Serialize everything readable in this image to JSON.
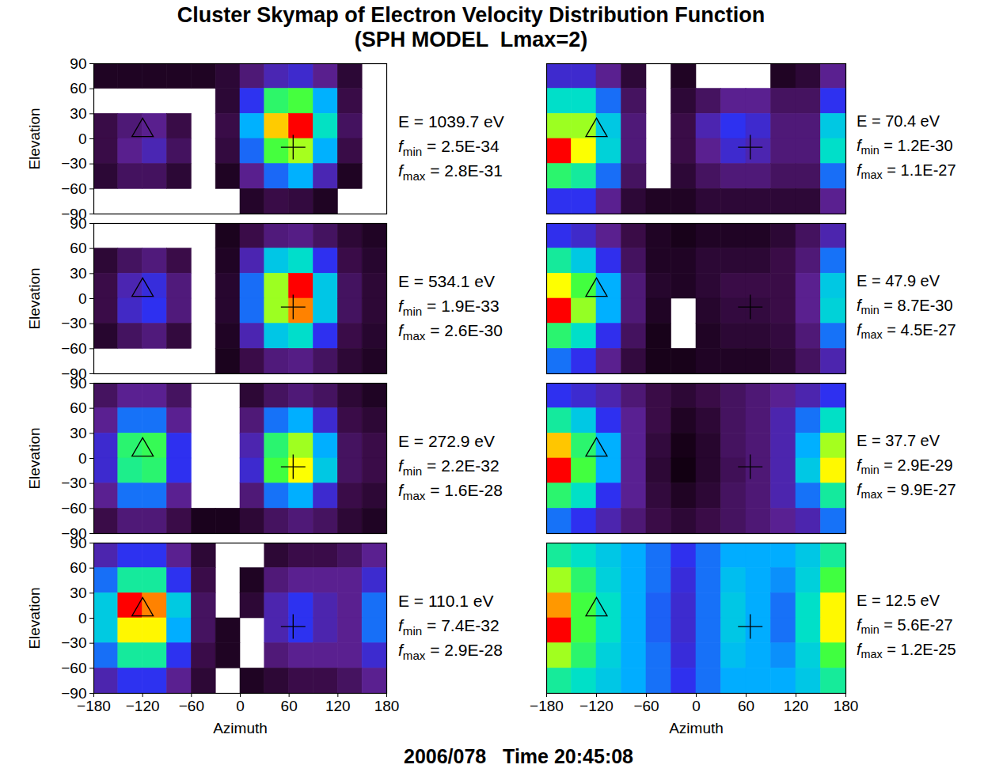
{
  "title": "Cluster Skymap of Electron Velocity Distribution Function",
  "subtitle": "(SPH MODEL  Lmax=2)",
  "caption": "2006/078   Time 20:45:08",
  "x_label": "Azimuth",
  "y_label": "Elevation",
  "xlim": [
    -180,
    180
  ],
  "xticks": [
    -180,
    -120,
    -60,
    0,
    60,
    120,
    180
  ],
  "ylim": [
    -90,
    90
  ],
  "yticks": [
    -90,
    -60,
    -30,
    0,
    30,
    60,
    90
  ],
  "f_symbol": "f",
  "min_subscript": "min",
  "max_subscript": "max",
  "azimuth_edges": [
    -180,
    -150,
    -120,
    -90,
    -60,
    -30,
    0,
    30,
    60,
    90,
    120,
    150,
    180
  ],
  "elevation_edges": [
    90,
    60,
    30,
    0,
    -30,
    -60,
    -90
  ],
  "markers": [
    {
      "marker": "triangle",
      "azimuth": -120,
      "elevation": 10
    },
    {
      "marker": "plus",
      "azimuth": 65,
      "elevation": -10
    }
  ],
  "chart_data": [
    {
      "type": "heatmap",
      "label": "E = 1039.7 eV",
      "f_min": {
        "value": 2.5e-34,
        "label": "= 2.5E-34"
      },
      "f_max": {
        "value": 2.8e-31,
        "label": "= 2.8E-31"
      },
      "cells": [
        [
          3.5e-34,
          3.5e-34,
          3.5e-34,
          3.5e-34,
          3.5e-34,
          5e-34,
          1.4e-33,
          3e-33,
          4e-33,
          2e-33,
          5e-34,
          null
        ],
        [
          null,
          null,
          null,
          null,
          null,
          5e-34,
          6e-33,
          5e-32,
          7e-32,
          1.2e-32,
          7e-34,
          null
        ],
        [
          7e-34,
          1.4e-33,
          2e-33,
          7e-34,
          null,
          7e-34,
          1.2e-32,
          1.6e-31,
          2.8e-31,
          2.5e-32,
          1e-33,
          null
        ],
        [
          7e-34,
          2e-33,
          3e-33,
          1e-33,
          null,
          6e-34,
          8e-33,
          7e-32,
          1e-31,
          1.2e-32,
          7e-34,
          null
        ],
        [
          5e-34,
          1e-33,
          1e-33,
          5e-34,
          null,
          3.5e-34,
          2e-33,
          8e-33,
          1.2e-32,
          3e-33,
          3.5e-34,
          null
        ],
        [
          null,
          null,
          null,
          null,
          null,
          null,
          4e-34,
          7e-34,
          6e-34,
          3.5e-34,
          null,
          null
        ]
      ]
    },
    {
      "type": "heatmap",
      "label": "E = 534.1 eV",
      "f_min": {
        "value": 1.9e-33,
        "label": "= 1.9E-33"
      },
      "f_max": {
        "value": 2.6e-30,
        "label": "= 2.6E-30"
      },
      "cells": [
        [
          null,
          null,
          null,
          null,
          null,
          2.4e-33,
          5.6e-33,
          1.2e-32,
          1.4e-32,
          8e-33,
          3.9e-33,
          2.8e-33
        ],
        [
          3.9e-33,
          8e-33,
          1.2e-32,
          5.6e-33,
          null,
          2.8e-33,
          2.4e-32,
          1.4e-31,
          2e-31,
          4.9e-32,
          5.6e-33,
          3.4e-33
        ],
        [
          5.6e-33,
          2.4e-32,
          3.9e-32,
          1.2e-32,
          null,
          3.4e-33,
          6.9e-32,
          8.7e-31,
          2.6e-30,
          1.4e-31,
          8e-33,
          3.9e-33
        ],
        [
          5.6e-33,
          3e-32,
          4.9e-32,
          1.2e-32,
          null,
          3.4e-33,
          6.9e-32,
          8.7e-31,
          1.8e-30,
          1.4e-31,
          8e-33,
          3.9e-33
        ],
        [
          3.4e-33,
          8e-33,
          1.2e-32,
          4.6e-33,
          null,
          2.8e-33,
          2.4e-32,
          1.4e-31,
          2e-31,
          4.9e-32,
          5.6e-33,
          3.4e-33
        ],
        [
          null,
          null,
          null,
          null,
          null,
          2.4e-33,
          5.6e-33,
          1.2e-32,
          1.4e-32,
          8e-33,
          3.9e-33,
          2.8e-33
        ]
      ]
    },
    {
      "type": "heatmap",
      "label": "E = 272.9 eV",
      "f_min": {
        "value": 2.2e-32,
        "label": "= 2.2E-32"
      },
      "f_max": {
        "value": 1.6e-28,
        "label": "= 1.6E-28"
      },
      "cells": [
        [
          1.3e-31,
          3.2e-31,
          3.2e-31,
          1.3e-31,
          null,
          null,
          5.4e-32,
          1.3e-31,
          2e-31,
          1.3e-31,
          5.4e-32,
          3.4e-32
        ],
        [
          3.2e-31,
          1.9e-30,
          1.9e-30,
          3.2e-31,
          null,
          null,
          2e-31,
          1.9e-30,
          2.9e-30,
          7.6e-31,
          8.3e-32,
          5.4e-32
        ],
        [
          7.6e-31,
          1.7e-29,
          2.2e-29,
          1.2e-30,
          null,
          null,
          4.9e-31,
          1.7e-29,
          4.2e-29,
          2.9e-30,
          1.3e-31,
          8.3e-32
        ],
        [
          7.6e-31,
          1.3e-29,
          1.7e-29,
          1.2e-30,
          null,
          null,
          7.6e-31,
          2.7e-29,
          6.5e-29,
          4.6e-30,
          1.3e-31,
          8.3e-32
        ],
        [
          3.2e-31,
          1.9e-30,
          1.9e-30,
          3.2e-31,
          null,
          null,
          2e-31,
          1.9e-30,
          2.9e-30,
          7.6e-31,
          8.3e-32,
          5.4e-32
        ],
        [
          8.3e-32,
          2e-31,
          2e-31,
          8.3e-32,
          2.9e-32,
          2.9e-32,
          5.4e-32,
          1.3e-31,
          2e-31,
          1.3e-31,
          5.4e-32,
          3.4e-32
        ]
      ]
    },
    {
      "type": "heatmap",
      "label": "E = 110.1 eV",
      "f_min": {
        "value": 7.4e-32,
        "label": "= 7.4E-32"
      },
      "f_max": {
        "value": 2.9e-28,
        "label": "= 2.9E-28"
      },
      "cells": [
        [
          1.3e-30,
          3.1e-30,
          3.1e-30,
          8.9e-31,
          1.7e-31,
          null,
          null,
          1.7e-31,
          2.6e-31,
          2.6e-31,
          3.9e-31,
          8.9e-31
        ],
        [
          4.6e-30,
          2.4e-29,
          2.4e-29,
          3.1e-30,
          2.6e-31,
          null,
          1.1e-31,
          5.9e-31,
          8.9e-31,
          8.9e-31,
          8.9e-31,
          2e-30
        ],
        [
          1.1e-29,
          2.9e-28,
          1.9e-28,
          1.1e-29,
          3.9e-31,
          null,
          1.7e-31,
          1.3e-30,
          3.1e-30,
          1.3e-30,
          8.9e-31,
          4.6e-30
        ],
        [
          1.1e-29,
          1.3e-28,
          1.3e-28,
          6.9e-30,
          3.9e-31,
          1.1e-31,
          null,
          1.3e-30,
          3.1e-30,
          1.3e-30,
          8.9e-31,
          4.6e-30
        ],
        [
          4.6e-30,
          2.4e-29,
          2.4e-29,
          3.1e-30,
          2.6e-31,
          1.1e-31,
          null,
          5.9e-31,
          8.9e-31,
          8.9e-31,
          8.9e-31,
          2e-30
        ],
        [
          1.3e-30,
          3.1e-30,
          3.1e-30,
          8.9e-31,
          1.7e-31,
          null,
          1.1e-31,
          1.7e-31,
          2.6e-31,
          2.6e-31,
          3.9e-31,
          8.9e-31
        ]
      ]
    },
    {
      "type": "heatmap",
      "label": "E = 70.4 eV",
      "f_min": {
        "value": 1.2e-30,
        "label": "= 1.2E-30"
      },
      "f_max": {
        "value": 1.1e-27,
        "label": "= 1.1E-27"
      },
      "cells": [
        [
          1.8e-29,
          1.8e-29,
          9.3e-30,
          2.4e-30,
          null,
          1.7e-30,
          null,
          null,
          null,
          1.7e-30,
          2.4e-30,
          9.3e-30
        ],
        [
          1e-28,
          1e-28,
          3.6e-29,
          4.7e-30,
          null,
          2.4e-30,
          4.7e-30,
          9.3e-30,
          9.3e-30,
          4.7e-30,
          4.7e-30,
          2.6e-29
        ],
        [
          3.9e-28,
          3.9e-28,
          7.2e-29,
          6.6e-30,
          null,
          3.3e-30,
          1.3e-29,
          2.6e-29,
          1.8e-29,
          6.6e-30,
          6.6e-30,
          7.2e-29
        ],
        [
          1.1e-27,
          5.5e-28,
          8.3e-29,
          6.6e-30,
          null,
          3.3e-30,
          9.3e-30,
          1.8e-29,
          1.3e-29,
          6.6e-30,
          6.6e-30,
          1e-28
        ],
        [
          2e-28,
          1.4e-28,
          3.6e-29,
          4.7e-30,
          null,
          2.4e-30,
          4.7e-30,
          6.6e-30,
          6.6e-30,
          4.7e-30,
          4.7e-30,
          3.6e-29
        ],
        [
          2.6e-29,
          2.6e-29,
          9.3e-30,
          2.4e-30,
          1.7e-30,
          1.7e-30,
          2.4e-30,
          2.4e-30,
          2.4e-30,
          2.4e-30,
          2.4e-30,
          9.3e-30
        ]
      ]
    },
    {
      "type": "heatmap",
      "label": "E = 47.9 eV",
      "f_min": {
        "value": 8.7e-30,
        "label": "= 8.7E-30"
      },
      "f_max": {
        "value": 4.5e-27,
        "label": "= 4.5E-27"
      },
      "cells": [
        [
          1.4e-28,
          1e-28,
          5.6e-29,
          2.2e-29,
          1.2e-29,
          1e-29,
          1.2e-29,
          1.2e-29,
          1.2e-29,
          1.6e-29,
          3e-29,
          7.6e-29
        ],
        [
          6.9e-28,
          3.7e-28,
          1.4e-28,
          3e-29,
          1.2e-29,
          1.2e-29,
          1.6e-29,
          1.6e-29,
          1.6e-29,
          2.2e-29,
          4.1e-29,
          2e-28
        ],
        [
          2.4e-27,
          1.3e-27,
          2.7e-28,
          4.1e-29,
          1.4e-29,
          1.2e-29,
          1.6e-29,
          2.2e-29,
          2.2e-29,
          2.2e-29,
          5.6e-29,
          3.7e-28
        ],
        [
          4.5e-27,
          1.7e-27,
          2.7e-28,
          4.1e-29,
          1.2e-29,
          null,
          1.4e-29,
          1.9e-29,
          1.9e-29,
          2.2e-29,
          5.6e-29,
          4.2e-28
        ],
        [
          9.3e-28,
          5e-28,
          1.4e-28,
          3e-29,
          1e-29,
          null,
          1.2e-29,
          1.6e-29,
          1.6e-29,
          1.9e-29,
          4.1e-29,
          2e-28
        ],
        [
          2e-28,
          1.4e-28,
          5.6e-29,
          1.9e-29,
          1e-29,
          1e-29,
          1.2e-29,
          1.2e-29,
          1.2e-29,
          1.6e-29,
          3e-29,
          7.6e-29
        ]
      ]
    },
    {
      "type": "heatmap",
      "label": "E = 37.7 eV",
      "f_min": {
        "value": 2.9e-29,
        "label": "= 2.9E-29"
      },
      "f_max": {
        "value": 9.9e-27,
        "label": "= 9.9E-27"
      },
      "cells": [
        [
          4e-28,
          3e-28,
          2.2e-28,
          1.2e-28,
          6.9e-29,
          5.2e-29,
          6.9e-29,
          9.3e-29,
          1.2e-28,
          1.7e-28,
          2.2e-28,
          4e-28
        ],
        [
          1.7e-27,
          9.6e-28,
          4e-28,
          1.7e-28,
          6.9e-29,
          3.9e-29,
          5.2e-29,
          9.3e-29,
          1.2e-28,
          2.2e-28,
          5.4e-28,
          1.3e-27
        ],
        [
          6.3e-27,
          2.3e-27,
          7.2e-28,
          1.7e-28,
          5.8e-29,
          3.2e-29,
          4.6e-29,
          9.3e-29,
          1.2e-28,
          2.2e-28,
          7.2e-28,
          4.2e-27
        ],
        [
          9.9e-27,
          3.1e-27,
          7.2e-28,
          1.7e-28,
          5.2e-29,
          2.9e-29,
          4.6e-29,
          8.3e-29,
          1.2e-28,
          2.2e-28,
          9.6e-28,
          5.6e-27
        ],
        [
          2.3e-27,
          1.3e-27,
          4e-28,
          1.7e-28,
          5.8e-29,
          3.9e-29,
          5.2e-29,
          9.3e-29,
          1.2e-28,
          2.2e-28,
          5.4e-28,
          1.7e-27
        ],
        [
          5.4e-28,
          4e-28,
          2.2e-28,
          1.2e-28,
          6.9e-29,
          5.2e-29,
          6.9e-29,
          9.3e-29,
          1.2e-28,
          1.7e-28,
          2.2e-28,
          5.4e-28
        ]
      ]
    },
    {
      "type": "heatmap",
      "label": "E = 12.5 eV",
      "f_min": {
        "value": 5.6e-27,
        "label": "= 5.6E-27"
      },
      "f_max": {
        "value": 1.2e-25,
        "label": "= 1.2E-25"
      },
      "cells": [
        [
          4.8e-26,
          4.1e-26,
          3.5e-26,
          3e-26,
          2.6e-26,
          2.2e-26,
          2.6e-26,
          3e-26,
          3e-26,
          3e-26,
          3.5e-26,
          4.8e-26
        ],
        [
          7.6e-26,
          5.6e-26,
          3.7e-26,
          3e-26,
          2.6e-26,
          2e-26,
          2.6e-26,
          3.3e-26,
          3e-26,
          2.8e-26,
          3.7e-26,
          6.5e-26
        ],
        [
          1e-25,
          6.5e-26,
          4.1e-26,
          3e-26,
          2.5e-26,
          1.9e-26,
          2.6e-26,
          3.5e-26,
          3e-26,
          2.6e-26,
          4.1e-26,
          8.9e-26
        ],
        [
          1.2e-25,
          6.5e-26,
          4.1e-26,
          3e-26,
          2.5e-26,
          1.9e-26,
          2.6e-26,
          3.5e-26,
          3e-26,
          2.6e-26,
          4.1e-26,
          8.9e-26
        ],
        [
          7.6e-26,
          5.6e-26,
          3.7e-26,
          3e-26,
          2.6e-26,
          2e-26,
          2.6e-26,
          3.3e-26,
          3e-26,
          2.8e-26,
          3.7e-26,
          6.5e-26
        ],
        [
          4.8e-26,
          4.1e-26,
          3.5e-26,
          3e-26,
          2.6e-26,
          2.2e-26,
          2.6e-26,
          3e-26,
          3e-26,
          3e-26,
          3.5e-26,
          4.8e-26
        ]
      ]
    }
  ]
}
